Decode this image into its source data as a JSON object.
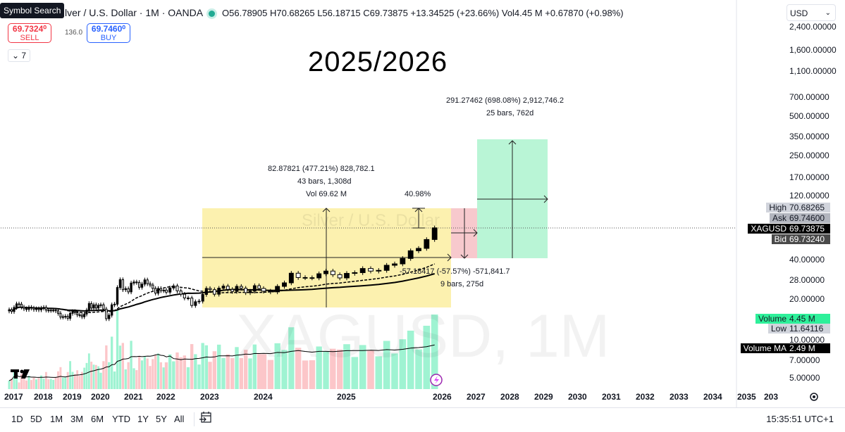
{
  "tooltip": "Symbol Search",
  "header": {
    "symbol_title": "lver / U.S. Dollar · 1M · OANDA",
    "ohlc": "O56.78905 H70.68265 L56.18715 C69.73875 +13.34525 (+23.66%) Vol4.45 M +0.67870 (+0.98%)"
  },
  "trade": {
    "sell_price": "69.7324⁰",
    "sell_label": "SELL",
    "spread": "136.0",
    "buy_price": "69.7460⁰",
    "buy_label": "BUY"
  },
  "indicators_toggle": "7",
  "title": "2025/2026",
  "watermark": {
    "main": "XAGUSD, 1M",
    "sub": "Silver / U.S. Dollar"
  },
  "annotations": {
    "range1_line1": "82.87821 (477.21%) 828,782.1",
    "range1_line2": "43 bars, 1,308d",
    "range1_line3": "Vol 69.62 M",
    "pct": "40.98%",
    "short_line1": "-57.18417 (-57.57%) -571,841.7",
    "short_line2": "9 bars, 275d",
    "long_line1": "291.27462 (698.08%) 2,912,746.2",
    "long_line2": "25 bars, 762d"
  },
  "currency": "USD",
  "price_axis": {
    "ticks": [
      "2,400.00000",
      "1,600.00000",
      "1,100.00000",
      "700.00000",
      "500.00000",
      "350.00000",
      "250.00000",
      "170.00000",
      "120.00000",
      "40.00000",
      "28.00000",
      "20.00000",
      "10.00000",
      "7.00000",
      "5.00000"
    ],
    "tick_values": [
      2400,
      1600,
      1100,
      700,
      500,
      350,
      250,
      170,
      120,
      40,
      28,
      20,
      10,
      7,
      5
    ],
    "labels": [
      {
        "key": "High",
        "value": "70.68265",
        "bg": "#d1d4dc",
        "fg": "#131722"
      },
      {
        "key": "Ask",
        "value": "69.74600",
        "bg": "#b2b5be",
        "fg": "#131722"
      },
      {
        "key": "XAGUSD",
        "value": "69.73875",
        "bg": "#000000",
        "fg": "#ffffff"
      },
      {
        "key": "Bid",
        "value": "69.73240",
        "bg": "#4a4a4a",
        "fg": "#ffffff"
      },
      {
        "key": "Volume",
        "value": "4.45 M",
        "bg": "#2ef09a",
        "fg": "#131722"
      },
      {
        "key": "Low",
        "value": "11.64116",
        "bg": "#d1d4dc",
        "fg": "#131722"
      },
      {
        "key": "Volume MA",
        "value": "2.49 M",
        "bg": "#000000",
        "fg": "#ffffff"
      }
    ]
  },
  "time_axis": [
    "2017",
    "2018",
    "2019",
    "2020",
    "2021",
    "2022",
    "2023",
    "2024",
    "2025",
    "2026",
    "2027",
    "2028",
    "2029",
    "2030",
    "2031",
    "2032",
    "2033",
    "2034",
    "2035",
    "203"
  ],
  "timeframes": [
    "1D",
    "5D",
    "1M",
    "3M",
    "6M",
    "YTD",
    "1Y",
    "5Y",
    "All"
  ],
  "clock": "15:35:51 UTC+1",
  "colors": {
    "up": "#000000",
    "down": "#000000",
    "vol_up": "#9ff3d2",
    "vol_down": "#fcc6c9",
    "range_box": "#fbeea1",
    "stop_box": "#f7c9cd",
    "target_box": "#b9f5d6"
  },
  "chart_data": {
    "type": "candlestick",
    "start": "2016-11",
    "interval": "1M",
    "closes": [
      16.5,
      16.0,
      17.2,
      18.3,
      18.2,
      17.3,
      16.8,
      16.6,
      17.2,
      17.0,
      16.6,
      16.8,
      16.5,
      17.0,
      17.2,
      16.4,
      16.3,
      16.4,
      16.4,
      16.2,
      15.5,
      14.5,
      14.6,
      14.7,
      14.2,
      15.5,
      16.0,
      15.7,
      15.1,
      15.0,
      14.6,
      15.3,
      16.4,
      18.4,
      17.0,
      18.0,
      17.0,
      17.8,
      18.0,
      16.7,
      14.1,
      15.0,
      18.0,
      18.2,
      24.4,
      28.0,
      23.5,
      23.9,
      22.6,
      26.4,
      26.9,
      26.7,
      24.5,
      25.9,
      27.9,
      26.1,
      25.5,
      24.0,
      22.1,
      24.0,
      23.1,
      23.3,
      22.5,
      24.2,
      25.1,
      23.0,
      21.7,
      20.3,
      20.3,
      17.8,
      19.0,
      19.2,
      21.6,
      24.0,
      23.5,
      21.7,
      24.1,
      25.0,
      23.6,
      22.8,
      24.9,
      24.1,
      22.3,
      22.9,
      25.2,
      24.0,
      22.9,
      22.6,
      24.9,
      26.5,
      31.4,
      29.1,
      29.0,
      28.9,
      31.1,
      32.6,
      30.6,
      28.9,
      31.3,
      31.7,
      34.1,
      32.6,
      33.0,
      36.1,
      37.0,
      40.7,
      46.6,
      48.6,
      56.8,
      69.74
    ]
  }
}
